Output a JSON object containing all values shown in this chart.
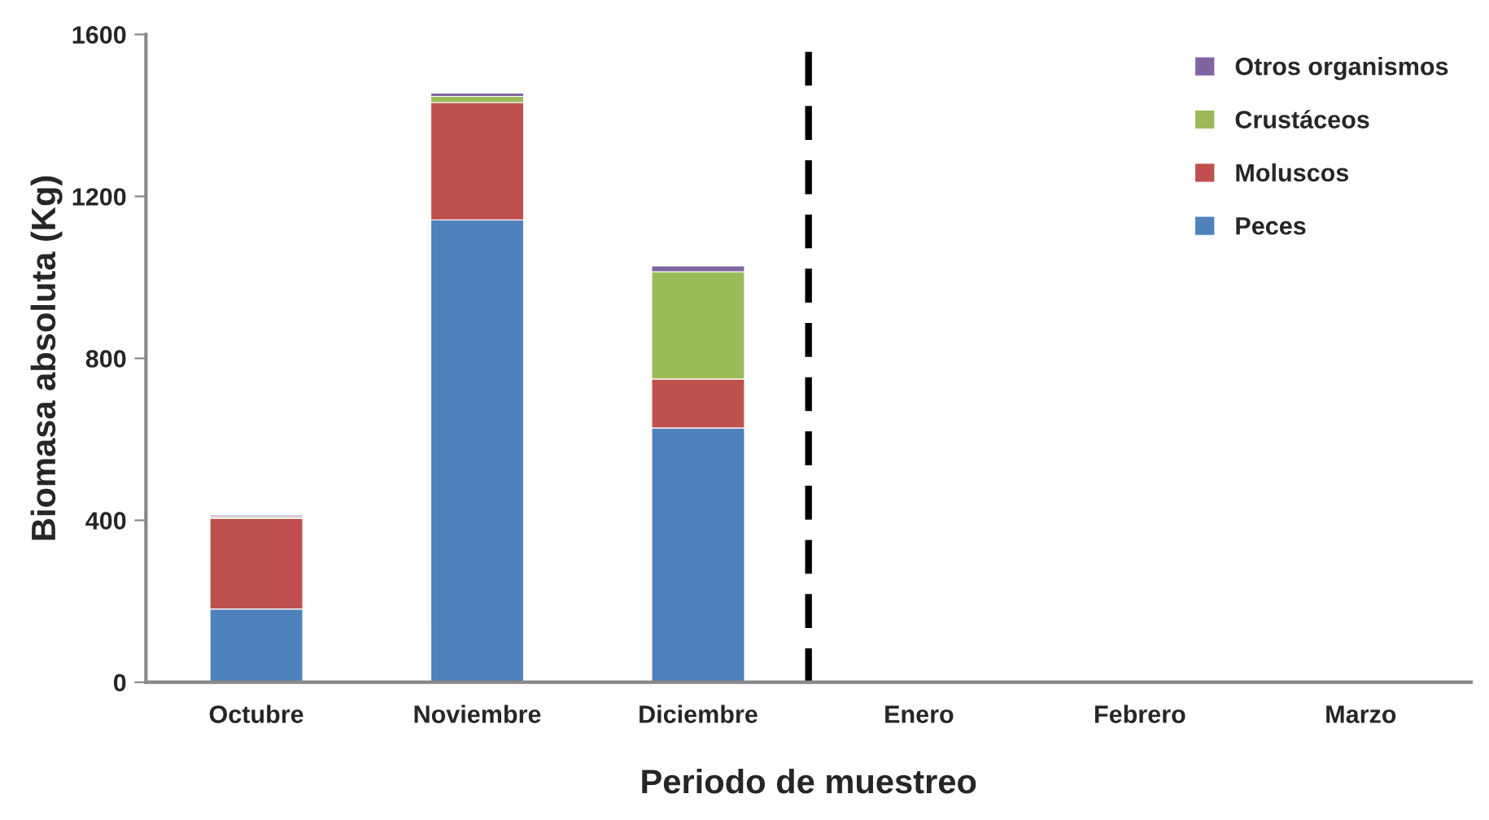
{
  "chart_data": {
    "type": "bar",
    "stacked": true,
    "xlabel": "Periodo de muestreo",
    "ylabel": "Biomasa absoluta (Kg)",
    "categories": [
      "Octubre",
      "Noviembre",
      "Diciembre",
      "Enero",
      "Febrero",
      "Marzo"
    ],
    "series": [
      {
        "name": "Peces",
        "color": "#4f81bd",
        "values": [
          181,
          1142,
          628,
          4,
          null,
          4
        ]
      },
      {
        "name": "Moluscos",
        "color": "#c0504d",
        "values": [
          224,
          290,
          121,
          null,
          null,
          null
        ]
      },
      {
        "name": "Crustáceos",
        "color": "#9bbb59",
        "values": [
          4,
          15,
          265,
          null,
          null,
          null
        ]
      },
      {
        "name": "Otros organismos",
        "color": "#8064a2",
        "values": [
          4,
          8,
          14,
          null,
          null,
          null
        ]
      }
    ],
    "ylim": [
      0,
      1600
    ],
    "yticks": [
      0,
      400,
      800,
      1200,
      1600
    ],
    "grid": false,
    "legend": "top right"
  }
}
